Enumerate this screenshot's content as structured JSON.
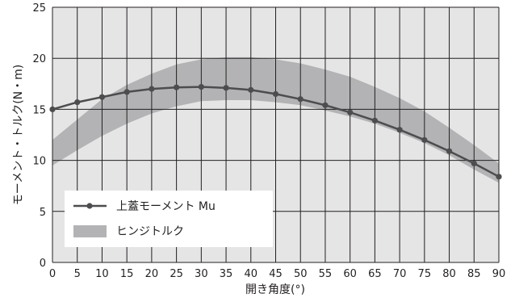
{
  "chart_data": {
    "type": "line",
    "xlabel": "開き角度(°)",
    "ylabel": "モーメント・トルク(N・m)",
    "xlim": [
      0,
      90
    ],
    "ylim": [
      0,
      25
    ],
    "xticks": [
      "0",
      "5",
      "10",
      "15",
      "20",
      "25",
      "30",
      "35",
      "40",
      "45",
      "50",
      "55",
      "60",
      "65",
      "70",
      "75",
      "80",
      "85",
      "90"
    ],
    "yticks": [
      "0",
      "5",
      "10",
      "15",
      "20",
      "25"
    ],
    "grid": true,
    "legend_position": "bottom-left",
    "x": [
      0,
      5,
      10,
      15,
      20,
      25,
      30,
      35,
      40,
      45,
      50,
      55,
      60,
      65,
      70,
      75,
      80,
      85,
      90
    ],
    "series": [
      {
        "name": "上蓋モーメント Mu",
        "type": "line",
        "color": "#4d4d4f",
        "values": [
          15.0,
          15.7,
          16.2,
          16.7,
          17.0,
          17.15,
          17.2,
          17.1,
          16.9,
          16.5,
          16.0,
          15.4,
          14.7,
          13.9,
          13.0,
          12.0,
          10.9,
          9.7,
          8.4
        ]
      },
      {
        "name": "ヒンジトルク",
        "type": "band",
        "color": "#b3b3b5",
        "upper": [
          12.0,
          14.0,
          16.0,
          17.4,
          18.5,
          19.4,
          19.9,
          20.1,
          20.1,
          19.9,
          19.5,
          18.9,
          18.2,
          17.2,
          16.1,
          14.8,
          13.2,
          11.5,
          9.7
        ],
        "lower": [
          9.5,
          11.0,
          12.4,
          13.6,
          14.6,
          15.3,
          15.8,
          15.9,
          15.9,
          15.7,
          15.4,
          14.9,
          14.3,
          13.6,
          12.7,
          11.7,
          10.5,
          9.1,
          7.8
        ]
      }
    ]
  }
}
